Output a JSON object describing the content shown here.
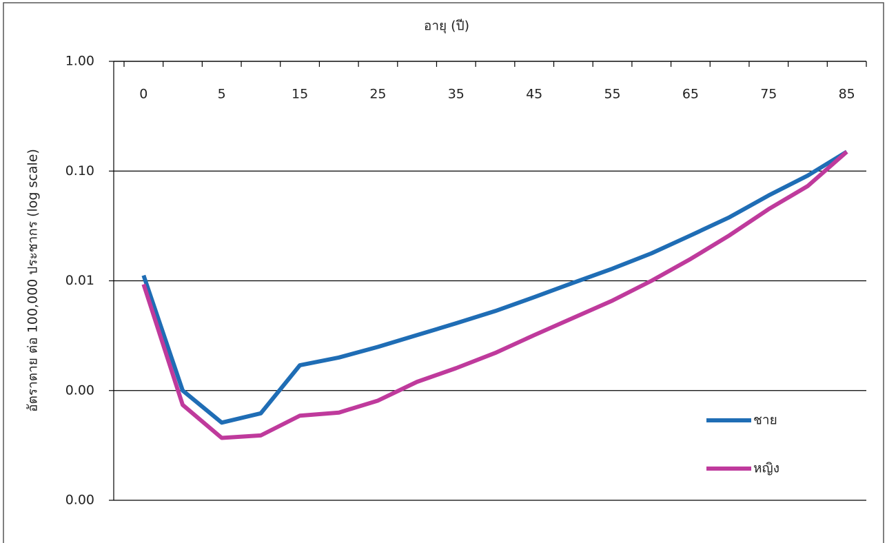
{
  "chart_data": {
    "type": "line",
    "x_label": "อายุ (ปี)",
    "y_label": "อัตราตาย ต่อ 100,000 ประชากร (log scale)",
    "categories": [
      "0",
      null,
      "5",
      null,
      "15",
      null,
      "25",
      null,
      "35",
      null,
      "45",
      null,
      "55",
      null,
      "65",
      null,
      "75",
      null,
      "85"
    ],
    "series": [
      {
        "name": "ชาย",
        "color": "#1f6db5",
        "values": [
          0.0112,
          0.001,
          0.00051,
          0.00062,
          0.0017,
          0.002,
          0.0025,
          0.0032,
          0.0041,
          0.0053,
          0.0071,
          0.0096,
          0.0129,
          0.0178,
          0.0259,
          0.038,
          0.06,
          0.091,
          0.15
        ]
      },
      {
        "name": "หญิง",
        "color": "#bf3a9c",
        "values": [
          0.0093,
          0.00074,
          0.00037,
          0.00039,
          0.00059,
          0.00063,
          0.00081,
          0.0012,
          0.0016,
          0.0022,
          0.0032,
          0.0046,
          0.0066,
          0.01,
          0.0158,
          0.026,
          0.045,
          0.073,
          0.15
        ]
      }
    ],
    "ylim": [
      0.0001,
      1
    ],
    "yticks": [
      {
        "value": 1,
        "label": "1.00"
      },
      {
        "value": 0.1,
        "label": "0.10"
      },
      {
        "value": 0.01,
        "label": "0.01"
      },
      {
        "value": 0.001,
        "label": "0.00"
      },
      {
        "value": 0.0001,
        "label": "0.00"
      }
    ],
    "log_scale": true,
    "grid": true,
    "legend": "lower right"
  }
}
